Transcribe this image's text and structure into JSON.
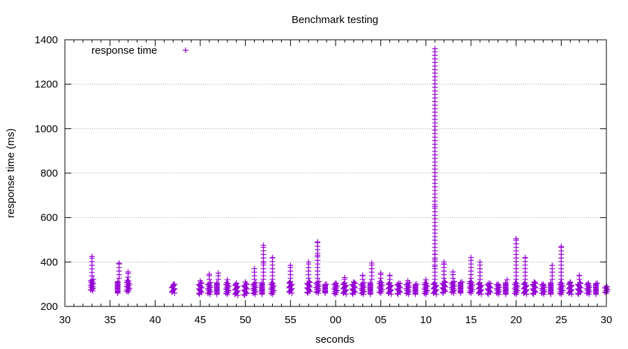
{
  "chart_data": {
    "type": "scatter",
    "title": "Benchmark testing",
    "xlabel": "seconds",
    "ylabel": "response time (ms)",
    "ylim": [
      200,
      1400
    ],
    "yticks": [
      200,
      400,
      600,
      800,
      1000,
      1200,
      1400
    ],
    "xticks": [
      "30",
      "35",
      "40",
      "45",
      "50",
      "55",
      "00",
      "05",
      "10",
      "15",
      "20",
      "25",
      "30"
    ],
    "grid": "horizontal dotted",
    "legend": "top-left",
    "marker": "+",
    "color": "#9400d3",
    "series": [
      {
        "name": "response time",
        "x": [
          33,
          36,
          37,
          42,
          45,
          46,
          47,
          48,
          49,
          50,
          51,
          52,
          53,
          55,
          57,
          58,
          59,
          60,
          61,
          62,
          63,
          64,
          65,
          66,
          67,
          68,
          69,
          70,
          71,
          72,
          73,
          74,
          75,
          76,
          77,
          78,
          79,
          80,
          81,
          82,
          83,
          84,
          85,
          86,
          87,
          88,
          89,
          90
        ],
        "y_max": [
          425,
          395,
          355,
          300,
          315,
          345,
          350,
          320,
          305,
          310,
          370,
          475,
          420,
          385,
          400,
          490,
          300,
          305,
          330,
          310,
          340,
          395,
          350,
          340,
          305,
          315,
          300,
          320,
          1360,
          400,
          355,
          310,
          420,
          400,
          305,
          300,
          320,
          505,
          420,
          310,
          300,
          385,
          470,
          310,
          340,
          305,
          305,
          290
        ],
        "y_min": [
          270,
          260,
          265,
          260,
          255,
          255,
          255,
          255,
          250,
          250,
          255,
          255,
          255,
          260,
          260,
          260,
          260,
          255,
          255,
          255,
          255,
          255,
          260,
          255,
          255,
          255,
          255,
          255,
          255,
          260,
          260,
          260,
          260,
          255,
          255,
          255,
          255,
          255,
          255,
          255,
          255,
          255,
          255,
          255,
          255,
          255,
          255,
          260
        ],
        "outliers": [
          [
            71,
            650
          ],
          [
            71,
            435
          ],
          [
            71,
            410
          ],
          [
            71,
            380
          ],
          [
            72,
            390
          ],
          [
            58,
            430
          ],
          [
            52,
            395
          ]
        ]
      }
    ]
  }
}
